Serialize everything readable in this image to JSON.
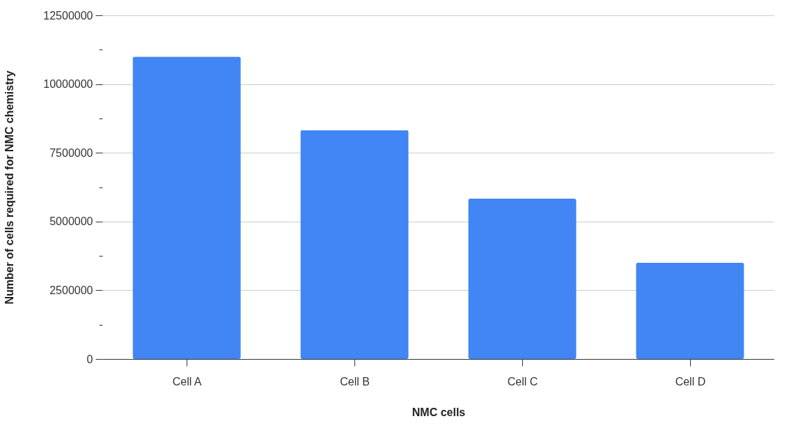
{
  "chart_data": {
    "type": "bar",
    "xlabel": "NMC cells",
    "ylabel": "Number of cells required for NMC chemistry",
    "categories": [
      "Cell A",
      "Cell B",
      "Cell C",
      "Cell D"
    ],
    "values": [
      11000000,
      8320000,
      5830000,
      3500000
    ],
    "color": "#4285f4",
    "ylim": [
      0,
      12500000
    ],
    "yticks": [
      0,
      {
        "value": 1250000,
        "label": null
      },
      2500000,
      {
        "value": 3750000,
        "label": null
      },
      5000000,
      {
        "value": 6250000,
        "label": null
      },
      7500000,
      {
        "value": 8750000,
        "label": null
      },
      10000000,
      {
        "value": 11250000,
        "label": null
      },
      12500000
    ],
    "grid": "y"
  }
}
